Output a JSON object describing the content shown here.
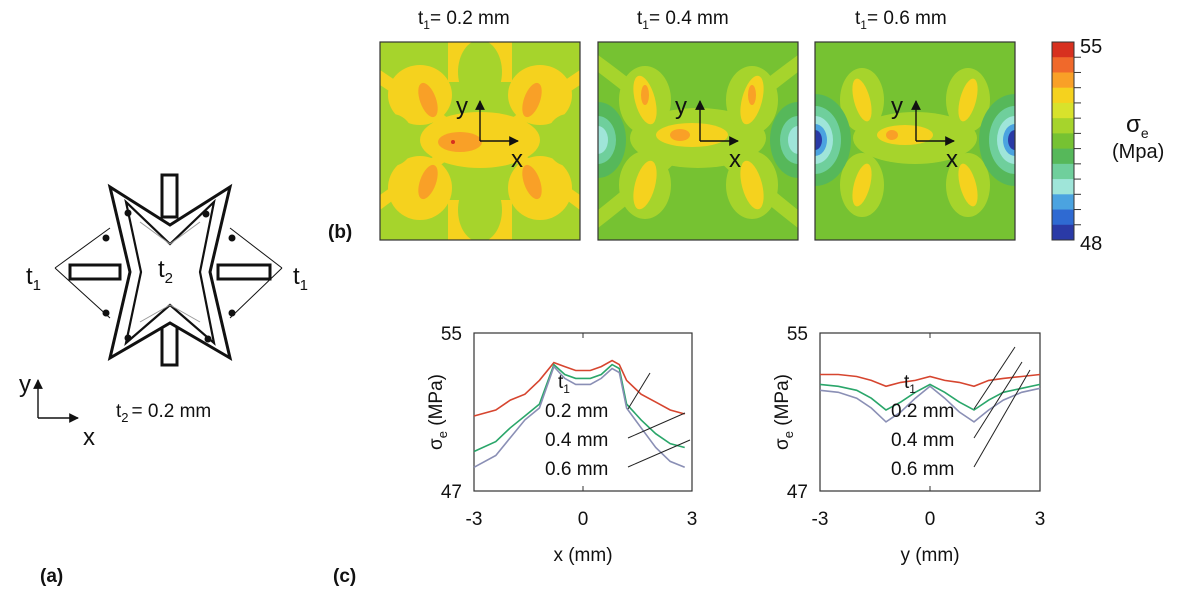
{
  "panel_labels": {
    "a": "(a)",
    "b": "(b)",
    "c": "(c)"
  },
  "schematic": {
    "t1_left": "t",
    "t1_right": "t",
    "t1_sub": "1",
    "t2_label": "t",
    "t2_sub": "2",
    "t2_caption_main": "t",
    "t2_caption_sub": "2",
    "t2_caption_rest": "= 0.2 mm",
    "axis_y": "y",
    "axis_x": "x"
  },
  "contour_maps": [
    {
      "title_main": "t",
      "title_sub": "1",
      "title_rest": "= 0.2 mm",
      "x": "x",
      "y": "y"
    },
    {
      "title_main": "t",
      "title_sub": "1",
      "title_rest": "= 0.4 mm",
      "x": "x",
      "y": "y"
    },
    {
      "title_main": "t",
      "title_sub": "1",
      "title_rest": "= 0.6 mm",
      "x": "x",
      "y": "y"
    }
  ],
  "colorbar": {
    "max_label": "55",
    "min_label": "48",
    "symbol": "σ",
    "symbol_sub": "e",
    "unit": "(Mpa)",
    "colors": [
      "#d7301f",
      "#f0692b",
      "#f9a027",
      "#f5d21e",
      "#d8e22c",
      "#a6d42c",
      "#76c232",
      "#56b85a",
      "#6fcf9c",
      "#9fe5d9",
      "#4ba3e0",
      "#2f6ad2",
      "#2a3aa6"
    ]
  },
  "chart_data": [
    {
      "type": "line",
      "xlabel": "x (mm)",
      "ylabel_symbol": "σ",
      "ylabel_sub": "e",
      "ylabel_rest": " (MPa)",
      "xlim": [
        -3,
        3
      ],
      "ylim": [
        47,
        55
      ],
      "xticks": [
        "-3",
        "0",
        "3"
      ],
      "yticks": [
        "47",
        "55"
      ],
      "legend_title": "t",
      "legend_title_sub": "1",
      "series": [
        {
          "name": "0.2 mm",
          "color": "#d6452f",
          "x": [
            -3,
            -2.4,
            -2,
            -1.6,
            -1.2,
            -0.8,
            -0.5,
            -0.2,
            0,
            0.2,
            0.5,
            0.8,
            1.0,
            1.2,
            1.6,
            2,
            2.4,
            2.8
          ],
          "y": [
            50.8,
            51.1,
            51.6,
            51.9,
            52.6,
            53.5,
            53.3,
            53.1,
            53.1,
            53.1,
            53.3,
            53.6,
            53.4,
            52.6,
            51.9,
            51.5,
            51.1,
            50.9
          ]
        },
        {
          "name": "0.4 mm",
          "color": "#2aa66a",
          "x": [
            -3,
            -2.4,
            -2,
            -1.6,
            -1.2,
            -0.8,
            -0.5,
            -0.2,
            0,
            0.2,
            0.5,
            0.8,
            1.0,
            1.2,
            1.6,
            2,
            2.4,
            2.8
          ],
          "y": [
            49.0,
            49.5,
            50.2,
            50.8,
            51.4,
            53.4,
            52.9,
            52.7,
            52.7,
            52.7,
            52.9,
            53.4,
            53.2,
            51.4,
            50.6,
            49.9,
            49.4,
            49.2
          ]
        },
        {
          "name": "0.6 mm",
          "color": "#8a8fb5",
          "x": [
            -3,
            -2.4,
            -2,
            -1.6,
            -1.2,
            -0.8,
            -0.5,
            -0.2,
            0,
            0.2,
            0.5,
            0.8,
            1.0,
            1.2,
            1.6,
            2,
            2.4,
            2.8
          ],
          "y": [
            48.2,
            48.8,
            49.7,
            50.6,
            51.2,
            53.3,
            52.7,
            52.4,
            52.4,
            52.4,
            52.7,
            53.2,
            53.0,
            51.2,
            50.2,
            49.2,
            48.5,
            48.2
          ]
        }
      ]
    },
    {
      "type": "line",
      "xlabel": "y (mm)",
      "ylabel_symbol": "σ",
      "ylabel_sub": "e",
      "ylabel_rest": " (MPa)",
      "xlim": [
        -3,
        3
      ],
      "ylim": [
        47,
        55
      ],
      "xticks": [
        "-3",
        "0",
        "3"
      ],
      "yticks": [
        "47",
        "55"
      ],
      "legend_title": "t",
      "legend_title_sub": "1",
      "series": [
        {
          "name": "0.2 mm",
          "color": "#d6452f",
          "x": [
            -3,
            -2.5,
            -2,
            -1.6,
            -1.2,
            -0.8,
            -0.4,
            0,
            0.4,
            0.8,
            1.2,
            1.6,
            2,
            2.5,
            3
          ],
          "y": [
            52.9,
            52.9,
            52.8,
            52.6,
            52.3,
            52.5,
            52.6,
            52.8,
            52.6,
            52.5,
            52.3,
            52.6,
            52.7,
            52.8,
            52.9
          ]
        },
        {
          "name": "0.4 mm",
          "color": "#2aa66a",
          "x": [
            -3,
            -2.5,
            -2,
            -1.6,
            -1.2,
            -0.8,
            -0.4,
            0,
            0.4,
            0.8,
            1.2,
            1.6,
            2,
            2.5,
            3
          ],
          "y": [
            52.4,
            52.3,
            52.1,
            51.7,
            51.1,
            51.5,
            52.0,
            52.4,
            52.0,
            51.5,
            51.1,
            51.6,
            52.0,
            52.2,
            52.4
          ]
        },
        {
          "name": "0.6 mm",
          "color": "#8a8fb5",
          "x": [
            -3,
            -2.5,
            -2,
            -1.6,
            -1.2,
            -0.8,
            -0.4,
            0,
            0.4,
            0.8,
            1.2,
            1.6,
            2,
            2.5,
            3
          ],
          "y": [
            52.1,
            52.0,
            51.7,
            51.2,
            50.5,
            51.0,
            51.7,
            52.3,
            51.7,
            51.0,
            50.5,
            51.1,
            51.6,
            52.0,
            52.2
          ]
        }
      ]
    }
  ]
}
